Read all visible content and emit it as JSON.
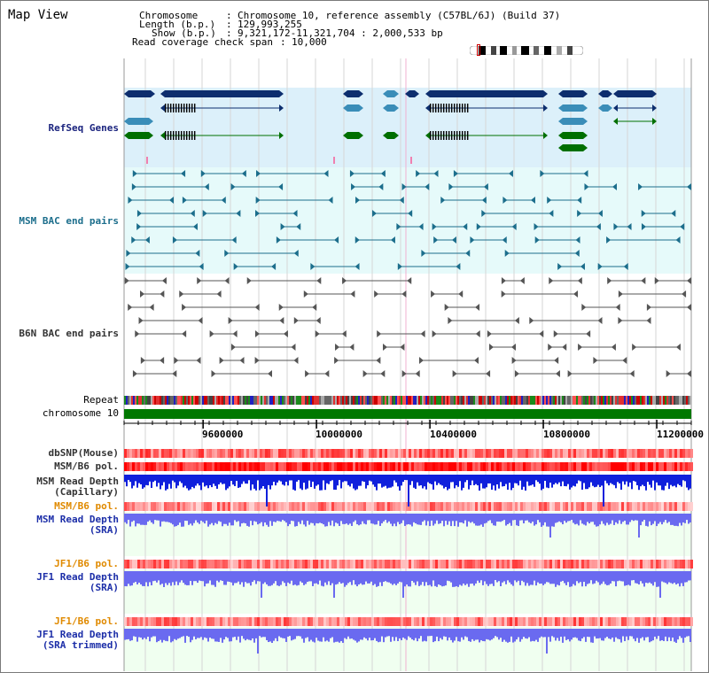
{
  "title": "Map View",
  "info": {
    "chromosome_key": "Chromosome",
    "chromosome_val": "Chromosome 10, reference assembly (C57BL/6J) (Build 37)",
    "length_key": "Length (b.p.)",
    "length_val": "129,993,255",
    "show_key": "Show (b.p.)",
    "show_val": "9,321,172-11,321,704 : 2,000,533 bp",
    "coverage_key": "Read coverage check span",
    "coverage_val": "10,000"
  },
  "tracks": {
    "refseq": "RefSeq Genes",
    "msm_bac": "MSM BAC end pairs",
    "b6n_bac": "B6N BAC end pairs",
    "repeat": "Repeat",
    "chromosome": "chromosome 10",
    "dbsnp": "dbSNP(Mouse)",
    "msm_b6_pol_1": "MSM/B6 pol.",
    "msm_depth_cap_1": "MSM Read Depth",
    "msm_depth_cap_2": "(Capillary)",
    "msm_b6_pol_2": "MSM/B6 pol.",
    "msm_depth_sra_1": "MSM Read Depth",
    "msm_depth_sra_2": "(SRA)",
    "jf1_b6_pol_1": "JF1/B6 pol.",
    "jf1_depth_sra_1": "JF1 Read Depth",
    "jf1_depth_sra_2": "(SRA)",
    "jf1_b6_pol_2": "JF1/B6 pol.",
    "jf1_depth_trim_1": "JF1 Read Depth",
    "jf1_depth_trim_2": "(SRA trimmed)"
  },
  "axis": {
    "ticks": [
      "9600000",
      "10000000",
      "10400000",
      "10800000",
      "11200000"
    ],
    "range": [
      9321172,
      11321704
    ]
  },
  "colors": {
    "refseq_bg": "#dcf0fa",
    "msm_bg": "#e6fafa",
    "depth_bg": "#f0fff0",
    "chromosome": "#007800",
    "gene_dark": "#0d2e6e",
    "gene_mid": "#3a8db8",
    "gene_green": "#006f00",
    "msm_line": "#1c6e8c",
    "b6n_line": "#555555",
    "depth_dark": "#1020dc",
    "depth_light": "#6a6af0"
  }
}
